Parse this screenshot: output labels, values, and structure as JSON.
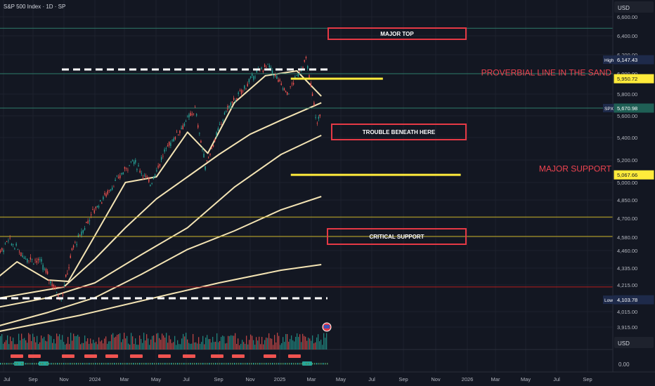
{
  "header": {
    "symbol_title": "S&P 500 Index · 1D · SP",
    "currency_top": "USD",
    "currency_bottom": "USD"
  },
  "colors": {
    "background": "#131722",
    "grid": "#1e222d",
    "up": "#26a69a",
    "down": "#ef5350",
    "ma": "#f4e4b4",
    "horizontal_teal": "#2e7d6b",
    "horizontal_yellow": "#ffeb3b",
    "horizontal_red": "#b71c1c",
    "annotation_box": "#e53945",
    "dashed_white": "#ffffff"
  },
  "chart_data": {
    "type": "line",
    "title": "S&P 500 Index · 1D · SP",
    "ylim": [
      3855,
      6600
    ],
    "x_tick_labels": [
      "Jul",
      "Sep",
      "Nov",
      "2024",
      "Mar",
      "May",
      "Jul",
      "Sep",
      "Nov",
      "2025",
      "Mar",
      "May",
      "Jul",
      "Sep",
      "Nov",
      "2026",
      "Mar",
      "May",
      "Jul",
      "Sep"
    ],
    "y_tick_labels": [
      "6,600.00",
      "6,400.00",
      "6,200.00",
      "6,000.00",
      "5,800.00",
      "5,600.00",
      "5,400.00",
      "5,200.00",
      "5,000.00",
      "4,850.00",
      "4,700.00",
      "4,580.00",
      "4,460.00",
      "4,335.00",
      "4,215.00",
      "4,015.00",
      "3,915.00"
    ],
    "y_tick_values": [
      6600,
      6400,
      6200,
      6000,
      5800,
      5600,
      5400,
      5200,
      5000,
      4850,
      4700,
      4580,
      4460,
      4335,
      4215,
      4015,
      3915
    ],
    "price_labels": [
      {
        "tag": "High",
        "value_text": "6,147.43",
        "value": 6147.43,
        "style": "plain"
      },
      {
        "tag": "",
        "value_text": "5,950.72",
        "value": 5950.72,
        "style": "yellow"
      },
      {
        "tag": "SPX",
        "value_text": "5,670.98",
        "value": 5670.98,
        "style": "teal"
      },
      {
        "tag": "",
        "value_text": "5,067.66",
        "value": 5067.66,
        "style": "yellow"
      },
      {
        "tag": "Low",
        "value_text": "4,103.78",
        "value": 4103.78,
        "style": "plain"
      }
    ],
    "horizontal_lines": [
      {
        "value": 6480,
        "color": "teal"
      },
      {
        "value": 6000,
        "color": "teal"
      },
      {
        "value": 5670.98,
        "color": "teal"
      },
      {
        "value": 4710,
        "color": "yellow"
      },
      {
        "value": 4585,
        "color": "yellow"
      },
      {
        "value": 4200,
        "color": "red"
      },
      {
        "value": 5950.72,
        "color": "yellow-thick",
        "x_from": "2025-01-20",
        "x_to": "2025-07-20"
      },
      {
        "value": 5067.66,
        "color": "yellow-thick",
        "x_from": "2025-01-20",
        "x_to": "2025-12-20"
      }
    ],
    "annotations": [
      {
        "text": "MAJOR TOP",
        "type": "box",
        "value": 6425
      },
      {
        "text": "TROUBLE BENEATH HERE",
        "type": "box",
        "value": 5500
      },
      {
        "text": "CRITICAL SUPPORT",
        "type": "box",
        "value": 4575
      },
      {
        "text": "PROVERBIAL LINE IN THE SAND",
        "type": "text",
        "value": 5975
      },
      {
        "text": "MAJOR SUPPORT",
        "type": "text",
        "value": 5090
      }
    ],
    "series": [
      {
        "kind": "price",
        "x": [
          "2023-06-01",
          "2023-07-15",
          "2023-08-15",
          "2023-09-15",
          "2023-10-27",
          "2023-11-20",
          "2023-12-31",
          "2024-02-01",
          "2024-03-15",
          "2024-04-19",
          "2024-05-20",
          "2024-07-16",
          "2024-08-05",
          "2024-09-15",
          "2024-10-15",
          "2024-11-11",
          "2024-12-06",
          "2025-01-13",
          "2025-02-19",
          "2025-03-13",
          "2025-03-21"
        ],
        "values": [
          4250,
          4550,
          4420,
          4380,
          4110,
          4500,
          4770,
          4950,
          5200,
          4990,
          5300,
          5660,
          5150,
          5650,
          5820,
          6000,
          6090,
          5800,
          6147,
          5520,
          5670
        ]
      },
      {
        "kind": "ma",
        "name": "",
        "x": [
          "2023-06-01",
          "2023-08-01",
          "2023-10-01",
          "2023-11-10",
          "2024-01-01",
          "2024-03-01",
          "2024-05-01",
          "2024-07-01",
          "2024-08-10",
          "2024-10-01",
          "2024-12-01",
          "2025-02-01",
          "2025-03-21"
        ],
        "values": [
          4200,
          4380,
          4250,
          4240,
          4590,
          5000,
          5050,
          5450,
          5260,
          5720,
          5980,
          6030,
          5780
        ]
      },
      {
        "kind": "ma",
        "name": "",
        "x": [
          "2023-06-01",
          "2023-09-01",
          "2023-11-01",
          "2024-01-01",
          "2024-03-01",
          "2024-05-01",
          "2024-07-01",
          "2024-09-01",
          "2024-11-01",
          "2025-01-01",
          "2025-03-21"
        ],
        "values": [
          4100,
          4160,
          4200,
          4400,
          4640,
          4860,
          5050,
          5250,
          5430,
          5560,
          5720
        ]
      },
      {
        "kind": "ma",
        "name": "",
        "x": [
          "2023-06-01",
          "2023-10-01",
          "2024-01-01",
          "2024-04-01",
          "2024-07-01",
          "2024-10-01",
          "2025-01-01",
          "2025-03-21"
        ],
        "values": [
          4030,
          4120,
          4230,
          4430,
          4640,
          4960,
          5250,
          5420
        ]
      },
      {
        "kind": "ma",
        "name": "",
        "x": [
          "2023-06-01",
          "2023-10-01",
          "2024-01-01",
          "2024-04-01",
          "2024-07-01",
          "2024-10-01",
          "2025-01-01",
          "2025-03-21"
        ],
        "values": [
          3900,
          4010,
          4120,
          4290,
          4470,
          4620,
          4770,
          4880
        ]
      },
      {
        "kind": "ma",
        "name": "",
        "x": [
          "2023-06-01",
          "2023-12-01",
          "2024-06-01",
          "2024-09-01",
          "2025-01-01",
          "2025-03-21"
        ],
        "values": [
          3870,
          3990,
          4150,
          4230,
          4320,
          4360
        ]
      }
    ],
    "grid": true,
    "volume_panel_value_label": "0.00"
  }
}
